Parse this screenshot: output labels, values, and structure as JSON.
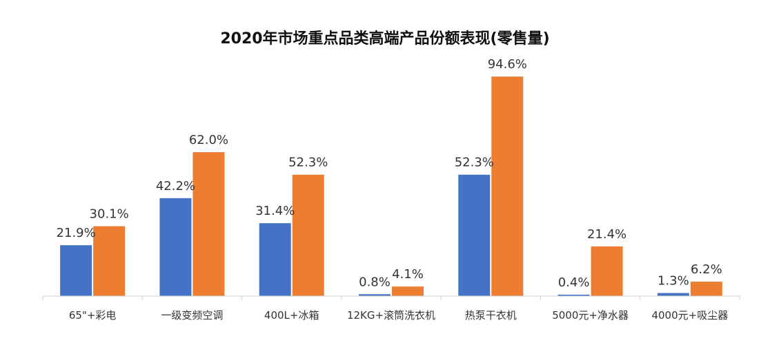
{
  "chart_data": {
    "type": "bar",
    "title": "2020年市场重点品类高端产品份额表现(零售量)",
    "categories": [
      "65\"+彩电",
      "一级变频空调",
      "400L+冰箱",
      "12KG+滚筒洗衣机",
      "热泵干衣机",
      "5000元+净水器",
      "4000元+吸尘器"
    ],
    "series": [
      {
        "values": [
          21.9,
          42.2,
          31.4,
          0.8,
          52.3,
          0.4,
          1.3
        ],
        "color": "#4472C4"
      },
      {
        "values": [
          30.1,
          62.0,
          52.3,
          4.1,
          94.6,
          21.4,
          6.2
        ],
        "color": "#ED7D31"
      }
    ],
    "value_suffix": "%",
    "xlabel": "",
    "ylabel": "",
    "ylim": [
      0,
      100
    ],
    "grid": false,
    "legend": "none"
  }
}
